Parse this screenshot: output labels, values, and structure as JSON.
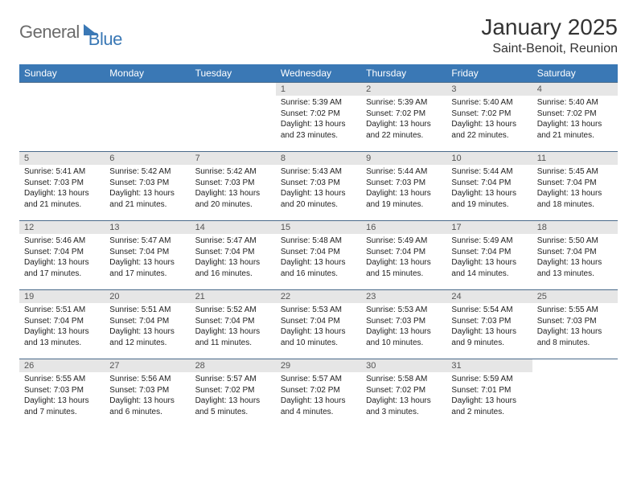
{
  "logo": {
    "part1": "General",
    "part2": "Blue"
  },
  "title": "January 2025",
  "location": "Saint-Benoit, Reunion",
  "colors": {
    "header_bg": "#3a78b5",
    "header_text": "#ffffff",
    "daynum_bg": "#e6e6e6",
    "border": "#4a6a8a",
    "body_text": "#222222",
    "logo_gray": "#6b6b6b",
    "logo_blue": "#3a78b5"
  },
  "weekdays": [
    "Sunday",
    "Monday",
    "Tuesday",
    "Wednesday",
    "Thursday",
    "Friday",
    "Saturday"
  ],
  "weeks": [
    [
      null,
      null,
      null,
      {
        "n": "1",
        "sr": "5:39 AM",
        "ss": "7:02 PM",
        "dl": "13 hours and 23 minutes."
      },
      {
        "n": "2",
        "sr": "5:39 AM",
        "ss": "7:02 PM",
        "dl": "13 hours and 22 minutes."
      },
      {
        "n": "3",
        "sr": "5:40 AM",
        "ss": "7:02 PM",
        "dl": "13 hours and 22 minutes."
      },
      {
        "n": "4",
        "sr": "5:40 AM",
        "ss": "7:02 PM",
        "dl": "13 hours and 21 minutes."
      }
    ],
    [
      {
        "n": "5",
        "sr": "5:41 AM",
        "ss": "7:03 PM",
        "dl": "13 hours and 21 minutes."
      },
      {
        "n": "6",
        "sr": "5:42 AM",
        "ss": "7:03 PM",
        "dl": "13 hours and 21 minutes."
      },
      {
        "n": "7",
        "sr": "5:42 AM",
        "ss": "7:03 PM",
        "dl": "13 hours and 20 minutes."
      },
      {
        "n": "8",
        "sr": "5:43 AM",
        "ss": "7:03 PM",
        "dl": "13 hours and 20 minutes."
      },
      {
        "n": "9",
        "sr": "5:44 AM",
        "ss": "7:03 PM",
        "dl": "13 hours and 19 minutes."
      },
      {
        "n": "10",
        "sr": "5:44 AM",
        "ss": "7:04 PM",
        "dl": "13 hours and 19 minutes."
      },
      {
        "n": "11",
        "sr": "5:45 AM",
        "ss": "7:04 PM",
        "dl": "13 hours and 18 minutes."
      }
    ],
    [
      {
        "n": "12",
        "sr": "5:46 AM",
        "ss": "7:04 PM",
        "dl": "13 hours and 17 minutes."
      },
      {
        "n": "13",
        "sr": "5:47 AM",
        "ss": "7:04 PM",
        "dl": "13 hours and 17 minutes."
      },
      {
        "n": "14",
        "sr": "5:47 AM",
        "ss": "7:04 PM",
        "dl": "13 hours and 16 minutes."
      },
      {
        "n": "15",
        "sr": "5:48 AM",
        "ss": "7:04 PM",
        "dl": "13 hours and 16 minutes."
      },
      {
        "n": "16",
        "sr": "5:49 AM",
        "ss": "7:04 PM",
        "dl": "13 hours and 15 minutes."
      },
      {
        "n": "17",
        "sr": "5:49 AM",
        "ss": "7:04 PM",
        "dl": "13 hours and 14 minutes."
      },
      {
        "n": "18",
        "sr": "5:50 AM",
        "ss": "7:04 PM",
        "dl": "13 hours and 13 minutes."
      }
    ],
    [
      {
        "n": "19",
        "sr": "5:51 AM",
        "ss": "7:04 PM",
        "dl": "13 hours and 13 minutes."
      },
      {
        "n": "20",
        "sr": "5:51 AM",
        "ss": "7:04 PM",
        "dl": "13 hours and 12 minutes."
      },
      {
        "n": "21",
        "sr": "5:52 AM",
        "ss": "7:04 PM",
        "dl": "13 hours and 11 minutes."
      },
      {
        "n": "22",
        "sr": "5:53 AM",
        "ss": "7:04 PM",
        "dl": "13 hours and 10 minutes."
      },
      {
        "n": "23",
        "sr": "5:53 AM",
        "ss": "7:03 PM",
        "dl": "13 hours and 10 minutes."
      },
      {
        "n": "24",
        "sr": "5:54 AM",
        "ss": "7:03 PM",
        "dl": "13 hours and 9 minutes."
      },
      {
        "n": "25",
        "sr": "5:55 AM",
        "ss": "7:03 PM",
        "dl": "13 hours and 8 minutes."
      }
    ],
    [
      {
        "n": "26",
        "sr": "5:55 AM",
        "ss": "7:03 PM",
        "dl": "13 hours and 7 minutes."
      },
      {
        "n": "27",
        "sr": "5:56 AM",
        "ss": "7:03 PM",
        "dl": "13 hours and 6 minutes."
      },
      {
        "n": "28",
        "sr": "5:57 AM",
        "ss": "7:02 PM",
        "dl": "13 hours and 5 minutes."
      },
      {
        "n": "29",
        "sr": "5:57 AM",
        "ss": "7:02 PM",
        "dl": "13 hours and 4 minutes."
      },
      {
        "n": "30",
        "sr": "5:58 AM",
        "ss": "7:02 PM",
        "dl": "13 hours and 3 minutes."
      },
      {
        "n": "31",
        "sr": "5:59 AM",
        "ss": "7:01 PM",
        "dl": "13 hours and 2 minutes."
      },
      null
    ]
  ],
  "labels": {
    "sunrise": "Sunrise:",
    "sunset": "Sunset:",
    "daylight": "Daylight:"
  }
}
